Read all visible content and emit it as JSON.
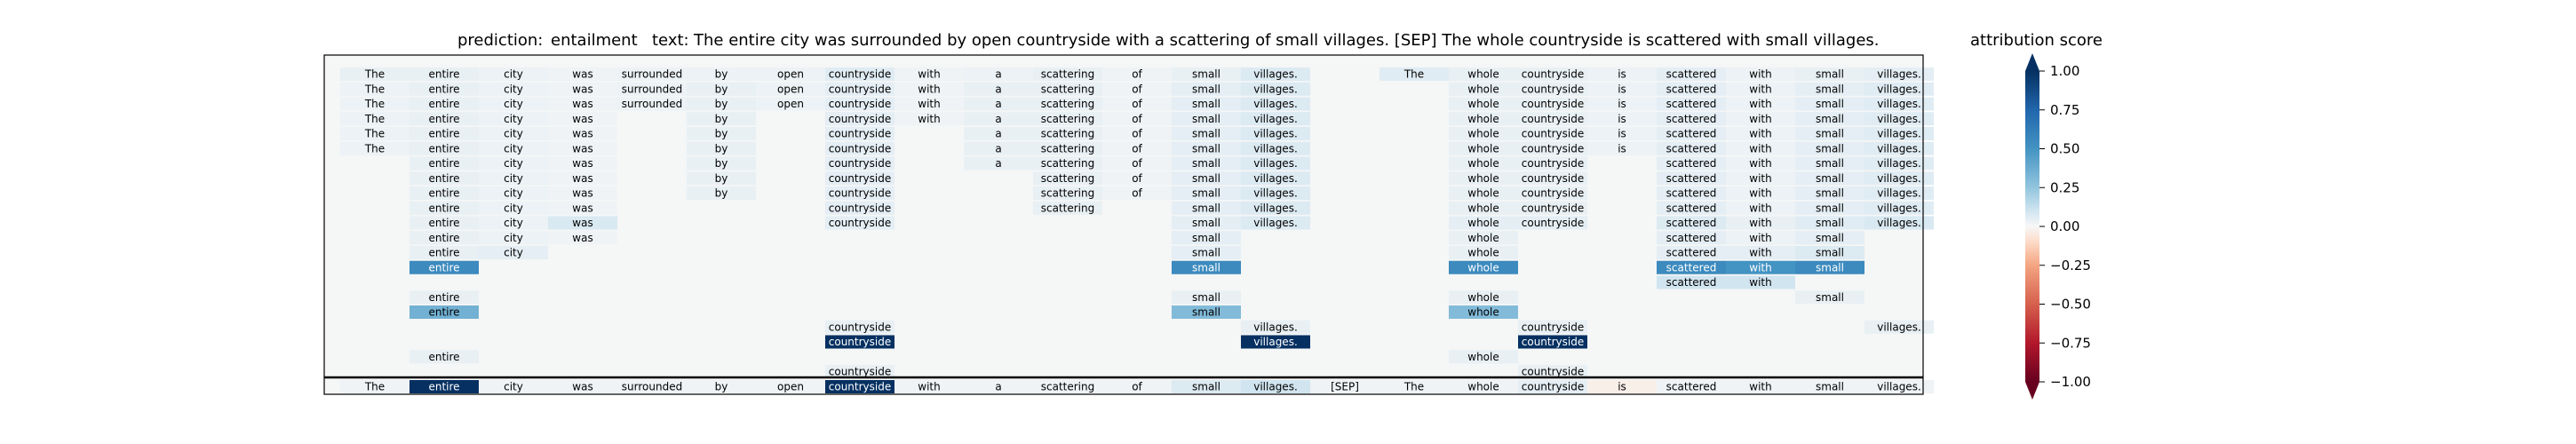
{
  "chart_data": {
    "type": "heatmap",
    "title": {
      "prediction_label": "prediction:",
      "prediction_value": "entailment",
      "text_label": "text:",
      "text_value": "The entire city was surrounded by open countryside with a scattering of small villages. [SEP] The whole countryside is scattered with small villages."
    },
    "colorbar": {
      "title": "attribution score",
      "ticks": [
        "1.00",
        "0.75",
        "0.50",
        "0.25",
        "0.00",
        "−0.25",
        "−0.50",
        "−0.75",
        "−1.00"
      ],
      "tick_values": [
        1.0,
        0.75,
        0.5,
        0.25,
        0.0,
        -0.25,
        -0.5,
        -0.75,
        -1.0
      ],
      "range": [
        -1.0,
        1.0
      ],
      "colormap": "RdBu"
    },
    "tokens": [
      "The",
      "entire",
      "city",
      "was",
      "surrounded",
      "by",
      "open",
      "countryside",
      "with",
      "a",
      "scattering",
      "of",
      "small",
      "villages.",
      "[SEP]",
      "The",
      "whole",
      "countryside",
      "is",
      "scattered",
      "with",
      "small",
      "villages."
    ],
    "rows": [
      [
        [
          0,
          "The",
          0.04
        ],
        [
          1,
          "entire",
          0.04
        ],
        [
          2,
          "city",
          0.03
        ],
        [
          3,
          "was",
          0.02
        ],
        [
          4,
          "surrounded",
          0.03
        ],
        [
          5,
          "by",
          0.03
        ],
        [
          6,
          "open",
          0.03
        ],
        [
          7,
          "countryside",
          0.06
        ],
        [
          8,
          "with",
          0.02
        ],
        [
          9,
          "a",
          0.03
        ],
        [
          10,
          "scattering",
          0.04
        ],
        [
          11,
          "of",
          0.02
        ],
        [
          12,
          "small",
          0.04
        ],
        [
          13,
          "villages.",
          0.07
        ],
        [
          15,
          "The",
          0.06
        ],
        [
          16,
          "whole",
          0.04
        ],
        [
          17,
          "countryside",
          0.04
        ],
        [
          18,
          "is",
          0.03
        ],
        [
          19,
          "scattered",
          0.05
        ],
        [
          20,
          "with",
          0.03
        ],
        [
          21,
          "small",
          0.04
        ],
        [
          22,
          "villages.",
          0.05
        ]
      ],
      [
        [
          0,
          "The",
          0.03
        ],
        [
          1,
          "entire",
          0.04
        ],
        [
          2,
          "city",
          0.03
        ],
        [
          3,
          "was",
          0.02
        ],
        [
          4,
          "surrounded",
          0.03
        ],
        [
          5,
          "by",
          0.04
        ],
        [
          6,
          "open",
          0.03
        ],
        [
          7,
          "countryside",
          0.05
        ],
        [
          8,
          "with",
          0.02
        ],
        [
          9,
          "a",
          0.04
        ],
        [
          10,
          "scattering",
          0.04
        ],
        [
          11,
          "of",
          0.02
        ],
        [
          12,
          "small",
          0.05
        ],
        [
          13,
          "villages.",
          0.07
        ],
        [
          16,
          "whole",
          0.04
        ],
        [
          17,
          "countryside",
          0.04
        ],
        [
          18,
          "is",
          0.03
        ],
        [
          19,
          "scattered",
          0.05
        ],
        [
          20,
          "with",
          0.03
        ],
        [
          21,
          "small",
          0.05
        ],
        [
          22,
          "villages.",
          0.06
        ]
      ],
      [
        [
          0,
          "The",
          0.03
        ],
        [
          1,
          "entire",
          0.04
        ],
        [
          2,
          "city",
          0.03
        ],
        [
          3,
          "was",
          0.02
        ],
        [
          4,
          "surrounded",
          0.03
        ],
        [
          5,
          "by",
          0.04
        ],
        [
          6,
          "open",
          0.03
        ],
        [
          7,
          "countryside",
          0.05
        ],
        [
          8,
          "with",
          0.02
        ],
        [
          9,
          "a",
          0.04
        ],
        [
          10,
          "scattering",
          0.04
        ],
        [
          11,
          "of",
          0.02
        ],
        [
          12,
          "small",
          0.05
        ],
        [
          13,
          "villages.",
          0.07
        ],
        [
          16,
          "whole",
          0.04
        ],
        [
          17,
          "countryside",
          0.04
        ],
        [
          18,
          "is",
          0.03
        ],
        [
          19,
          "scattered",
          0.05
        ],
        [
          20,
          "with",
          0.03
        ],
        [
          21,
          "small",
          0.05
        ],
        [
          22,
          "villages.",
          0.06
        ]
      ],
      [
        [
          0,
          "The",
          0.03
        ],
        [
          1,
          "entire",
          0.04
        ],
        [
          2,
          "city",
          0.03
        ],
        [
          3,
          "was",
          0.02
        ],
        [
          5,
          "by",
          0.04
        ],
        [
          7,
          "countryside",
          0.05
        ],
        [
          8,
          "with",
          0.02
        ],
        [
          9,
          "a",
          0.04
        ],
        [
          10,
          "scattering",
          0.04
        ],
        [
          11,
          "of",
          0.02
        ],
        [
          12,
          "small",
          0.05
        ],
        [
          13,
          "villages.",
          0.07
        ],
        [
          16,
          "whole",
          0.04
        ],
        [
          17,
          "countryside",
          0.04
        ],
        [
          18,
          "is",
          0.03
        ],
        [
          19,
          "scattered",
          0.05
        ],
        [
          20,
          "with",
          0.03
        ],
        [
          21,
          "small",
          0.05
        ],
        [
          22,
          "villages.",
          0.06
        ]
      ],
      [
        [
          0,
          "The",
          0.03
        ],
        [
          1,
          "entire",
          0.04
        ],
        [
          2,
          "city",
          0.03
        ],
        [
          3,
          "was",
          0.02
        ],
        [
          5,
          "by",
          0.04
        ],
        [
          7,
          "countryside",
          0.05
        ],
        [
          9,
          "a",
          0.04
        ],
        [
          10,
          "scattering",
          0.04
        ],
        [
          11,
          "of",
          0.02
        ],
        [
          12,
          "small",
          0.05
        ],
        [
          13,
          "villages.",
          0.07
        ],
        [
          16,
          "whole",
          0.04
        ],
        [
          17,
          "countryside",
          0.04
        ],
        [
          18,
          "is",
          0.03
        ],
        [
          19,
          "scattered",
          0.05
        ],
        [
          20,
          "with",
          0.03
        ],
        [
          21,
          "small",
          0.05
        ],
        [
          22,
          "villages.",
          0.06
        ]
      ],
      [
        [
          0,
          "The",
          0.03
        ],
        [
          1,
          "entire",
          0.04
        ],
        [
          2,
          "city",
          0.03
        ],
        [
          3,
          "was",
          0.02
        ],
        [
          5,
          "by",
          0.04
        ],
        [
          7,
          "countryside",
          0.05
        ],
        [
          9,
          "a",
          0.04
        ],
        [
          10,
          "scattering",
          0.04
        ],
        [
          11,
          "of",
          0.02
        ],
        [
          12,
          "small",
          0.05
        ],
        [
          13,
          "villages.",
          0.07
        ],
        [
          16,
          "whole",
          0.04
        ],
        [
          17,
          "countryside",
          0.04
        ],
        [
          18,
          "is",
          0.03
        ],
        [
          19,
          "scattered",
          0.05
        ],
        [
          20,
          "with",
          0.03
        ],
        [
          21,
          "small",
          0.05
        ],
        [
          22,
          "villages.",
          0.06
        ]
      ],
      [
        [
          1,
          "entire",
          0.04
        ],
        [
          2,
          "city",
          0.03
        ],
        [
          3,
          "was",
          0.02
        ],
        [
          5,
          "by",
          0.04
        ],
        [
          7,
          "countryside",
          0.05
        ],
        [
          9,
          "a",
          0.04
        ],
        [
          10,
          "scattering",
          0.04
        ],
        [
          11,
          "of",
          0.02
        ],
        [
          12,
          "small",
          0.05
        ],
        [
          13,
          "villages.",
          0.07
        ],
        [
          16,
          "whole",
          0.04
        ],
        [
          17,
          "countryside",
          0.04
        ],
        [
          19,
          "scattered",
          0.05
        ],
        [
          20,
          "with",
          0.03
        ],
        [
          21,
          "small",
          0.05
        ],
        [
          22,
          "villages.",
          0.06
        ]
      ],
      [
        [
          1,
          "entire",
          0.04
        ],
        [
          2,
          "city",
          0.03
        ],
        [
          3,
          "was",
          0.02
        ],
        [
          5,
          "by",
          0.04
        ],
        [
          7,
          "countryside",
          0.05
        ],
        [
          10,
          "scattering",
          0.04
        ],
        [
          11,
          "of",
          0.02
        ],
        [
          12,
          "small",
          0.05
        ],
        [
          13,
          "villages.",
          0.07
        ],
        [
          16,
          "whole",
          0.04
        ],
        [
          17,
          "countryside",
          0.04
        ],
        [
          19,
          "scattered",
          0.05
        ],
        [
          20,
          "with",
          0.03
        ],
        [
          21,
          "small",
          0.05
        ],
        [
          22,
          "villages.",
          0.06
        ]
      ],
      [
        [
          1,
          "entire",
          0.04
        ],
        [
          2,
          "city",
          0.03
        ],
        [
          3,
          "was",
          0.02
        ],
        [
          5,
          "by",
          0.04
        ],
        [
          7,
          "countryside",
          0.05
        ],
        [
          10,
          "scattering",
          0.04
        ],
        [
          11,
          "of",
          0.02
        ],
        [
          12,
          "small",
          0.05
        ],
        [
          13,
          "villages.",
          0.07
        ],
        [
          16,
          "whole",
          0.04
        ],
        [
          17,
          "countryside",
          0.04
        ],
        [
          19,
          "scattered",
          0.05
        ],
        [
          20,
          "with",
          0.03
        ],
        [
          21,
          "small",
          0.05
        ],
        [
          22,
          "villages.",
          0.06
        ]
      ],
      [
        [
          1,
          "entire",
          0.04
        ],
        [
          2,
          "city",
          0.03
        ],
        [
          3,
          "was",
          0.02
        ],
        [
          7,
          "countryside",
          0.05
        ],
        [
          10,
          "scattering",
          0.04
        ],
        [
          12,
          "small",
          0.05
        ],
        [
          13,
          "villages.",
          0.07
        ],
        [
          16,
          "whole",
          0.04
        ],
        [
          17,
          "countryside",
          0.04
        ],
        [
          19,
          "scattered",
          0.05
        ],
        [
          20,
          "with",
          0.03
        ],
        [
          21,
          "small",
          0.05
        ],
        [
          22,
          "villages.",
          0.06
        ]
      ],
      [
        [
          1,
          "entire",
          0.04
        ],
        [
          2,
          "city",
          0.03
        ],
        [
          3,
          "was",
          0.08
        ],
        [
          7,
          "countryside",
          0.05
        ],
        [
          12,
          "small",
          0.05
        ],
        [
          13,
          "villages.",
          0.07
        ],
        [
          16,
          "whole",
          0.05
        ],
        [
          17,
          "countryside",
          0.05
        ],
        [
          19,
          "scattered",
          0.07
        ],
        [
          20,
          "with",
          0.04
        ],
        [
          21,
          "small",
          0.06
        ],
        [
          22,
          "villages.",
          0.08
        ]
      ],
      [
        [
          1,
          "entire",
          0.04
        ],
        [
          2,
          "city",
          0.03
        ],
        [
          3,
          "was",
          0.02
        ],
        [
          12,
          "small",
          0.05
        ],
        [
          16,
          "whole",
          0.04
        ],
        [
          19,
          "scattered",
          0.05
        ],
        [
          20,
          "with",
          0.03
        ],
        [
          21,
          "small",
          0.05
        ]
      ],
      [
        [
          1,
          "entire",
          0.04
        ],
        [
          2,
          "city",
          0.05
        ],
        [
          12,
          "small",
          0.05
        ],
        [
          16,
          "whole",
          0.04
        ],
        [
          19,
          "scattered",
          0.05
        ],
        [
          20,
          "with",
          0.05
        ],
        [
          21,
          "small",
          0.07
        ]
      ],
      [
        [
          1,
          "entire",
          0.55
        ],
        [
          12,
          "small",
          0.55
        ],
        [
          16,
          "whole",
          0.55
        ],
        [
          19,
          "scattered",
          0.55
        ],
        [
          20,
          "with",
          0.5
        ],
        [
          21,
          "small",
          0.55
        ]
      ],
      [
        [
          19,
          "scattered",
          0.1
        ],
        [
          20,
          "with",
          0.1
        ]
      ],
      [
        [
          1,
          "entire",
          0.04
        ],
        [
          12,
          "small",
          0.04
        ],
        [
          16,
          "whole",
          0.04
        ],
        [
          21,
          "small",
          0.04
        ]
      ],
      [
        [
          1,
          "entire",
          0.35
        ],
        [
          12,
          "small",
          0.3
        ],
        [
          16,
          "whole",
          0.3
        ]
      ],
      [
        [
          7,
          "countryside",
          0.04
        ],
        [
          13,
          "villages.",
          0.04
        ],
        [
          17,
          "countryside",
          0.04
        ],
        [
          22,
          "villages.",
          0.04
        ]
      ],
      [
        [
          7,
          "countryside",
          1.0
        ],
        [
          13,
          "villages.",
          1.0
        ],
        [
          17,
          "countryside",
          1.0
        ]
      ],
      [
        [
          1,
          "entire",
          0.04
        ],
        [
          16,
          "whole",
          0.04
        ]
      ],
      [
        [
          7,
          "countryside",
          0.04
        ],
        [
          17,
          "countryside",
          0.04
        ]
      ]
    ],
    "bottom_row": [
      [
        0,
        "The",
        0.02
      ],
      [
        1,
        "entire",
        1.0
      ],
      [
        2,
        "city",
        0.02
      ],
      [
        3,
        "was",
        0.02
      ],
      [
        4,
        "surrounded",
        0.02
      ],
      [
        5,
        "by",
        0.02
      ],
      [
        6,
        "open",
        0.02
      ],
      [
        7,
        "countryside",
        1.0
      ],
      [
        8,
        "with",
        0.02
      ],
      [
        9,
        "a",
        0.02
      ],
      [
        10,
        "scattering",
        0.02
      ],
      [
        11,
        "of",
        0.02
      ],
      [
        12,
        "small",
        0.07
      ],
      [
        13,
        "villages.",
        0.1
      ],
      [
        14,
        "[SEP]",
        0.02
      ],
      [
        15,
        "The",
        0.02
      ],
      [
        16,
        "whole",
        0.02
      ],
      [
        17,
        "countryside",
        0.05
      ],
      [
        18,
        "is",
        -0.03
      ],
      [
        19,
        "scattered",
        0.02
      ],
      [
        20,
        "with",
        0.02
      ],
      [
        21,
        "small",
        0.02
      ],
      [
        22,
        "villages.",
        0.02
      ]
    ]
  }
}
